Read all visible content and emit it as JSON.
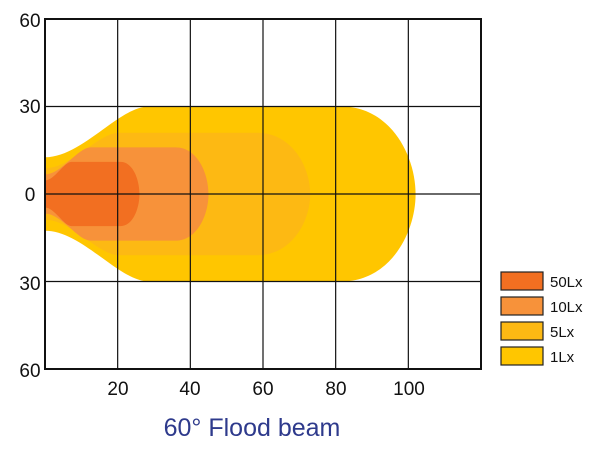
{
  "chart_data": {
    "type": "area",
    "title": "60° Flood beam",
    "x_ticks": [
      "20",
      "40",
      "60",
      "80",
      "100"
    ],
    "y_ticks": [
      "60",
      "30",
      "0",
      "30",
      "60"
    ],
    "xlim": [
      0,
      120
    ],
    "ylim": [
      -60,
      60
    ],
    "grid": true,
    "legend_position": "bottom-right",
    "series": [
      {
        "name": "1Lx",
        "color": "#FFC600",
        "reach": 102,
        "max_halfwidth": 30
      },
      {
        "name": "5Lx",
        "color": "#FDB913",
        "reach": 73,
        "max_halfwidth": 21
      },
      {
        "name": "10Lx",
        "color": "#F7923A",
        "reach": 45,
        "max_halfwidth": 16
      },
      {
        "name": "50Lx",
        "color": "#F26F21",
        "reach": 26,
        "max_halfwidth": 11
      }
    ],
    "legend": [
      {
        "label": "50Lx",
        "color": "#F26F21"
      },
      {
        "label": "10Lx",
        "color": "#F7923A"
      },
      {
        "label": "5Lx",
        "color": "#FDB913"
      },
      {
        "label": "1Lx",
        "color": "#FFC600"
      }
    ]
  }
}
